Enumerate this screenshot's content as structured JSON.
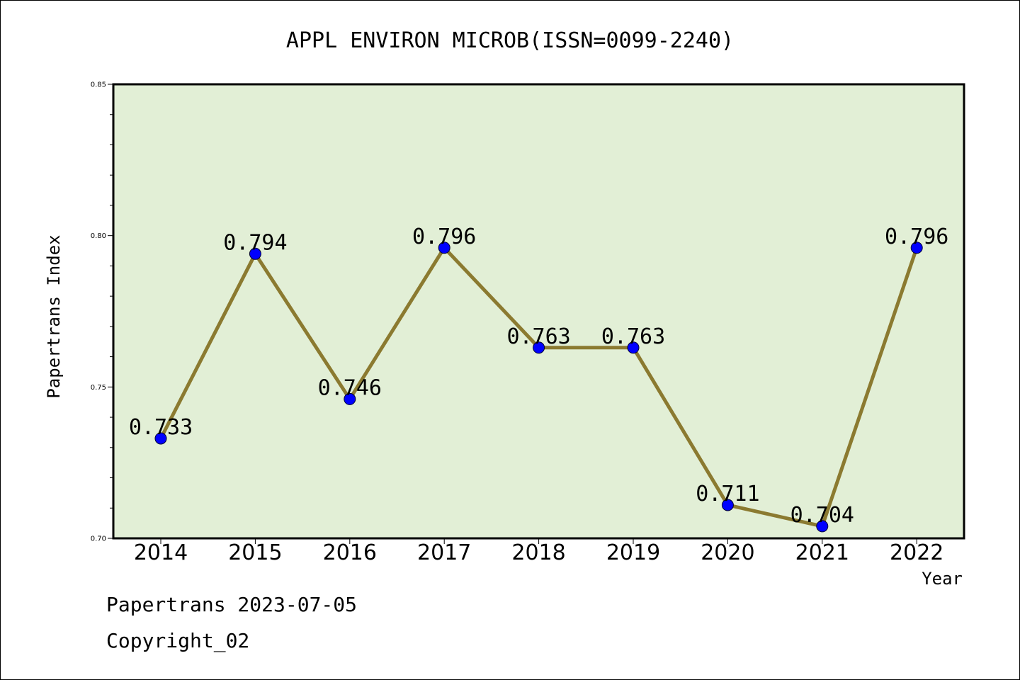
{
  "chart_data": {
    "type": "line",
    "title": "APPL ENVIRON MICROB(ISSN=0099-2240)",
    "xlabel": "Year",
    "ylabel": "Papertrans Index",
    "categories": [
      "2014",
      "2015",
      "2016",
      "2017",
      "2018",
      "2019",
      "2020",
      "2021",
      "2022"
    ],
    "series": [
      {
        "values": [
          0.733,
          0.794,
          0.746,
          0.796,
          0.763,
          0.763,
          0.711,
          0.704,
          0.796
        ]
      }
    ],
    "data_labels": [
      "0.733",
      "0.794",
      "0.746",
      "0.796",
      "0.763",
      "0.763",
      "0.711",
      "0.704",
      "0.796"
    ],
    "ylim": [
      0.7,
      0.85
    ],
    "yticks": [
      "0.70",
      "0.75",
      "0.80",
      "0.85"
    ],
    "grid": false,
    "legend": "none",
    "colors": {
      "plot_background": "#e2efd6",
      "line": "#8b7a30",
      "marker": "#0000ff"
    }
  },
  "footer": {
    "line1": "Papertrans 2023-07-05",
    "line2": "Copyright_02"
  }
}
